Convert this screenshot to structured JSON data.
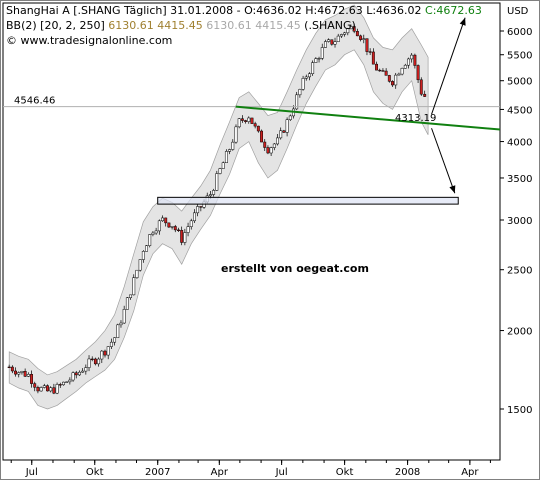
{
  "header": {
    "line1_prefix": "ShangHai A [.SHANG  Täglich] 31.01.2008 - O:4636.02 H:4672.63 L:4636.02 ",
    "line1_close": "C:4672.63",
    "line2_prefix": "BB(2) [20, 2, 250] ",
    "line2_vals_a": "6130.61 4415.45",
    "line2_vals_b": " 6130.61 4415.45",
    "line2_suffix": " (.SHANG)",
    "line3": "www.tradesignalonline.com",
    "copyright_glyph": "©"
  },
  "watermark": "erstellt von oegeat.com",
  "colors": {
    "candle_up": "#ffffff",
    "candle_down": "#cc2020",
    "band_fill": "#e4e4e4",
    "trendline": "#108010",
    "close_text": "#108010",
    "bb_vals": "#a08030",
    "watermark": "#0a1a9a"
  },
  "chart_data": {
    "type": "candlestick",
    "title": "ShangHai A [.SHANG  Täglich]",
    "y_unit": "USD",
    "y_scale": "log",
    "ylim": [
      1150,
      6500
    ],
    "y_ticks": [
      1500,
      2000,
      2500,
      3000,
      3500,
      4000,
      4500,
      5000,
      5500,
      6000
    ],
    "x_ticks": [
      "Jul",
      "Okt",
      "2007",
      "Apr",
      "Jul",
      "Okt",
      "2008",
      "Apr"
    ],
    "x_tick_months": [
      "2006-07",
      "2006-10",
      "2007-01",
      "2007-04",
      "2007-07",
      "2007-10",
      "2008-01",
      "2008-04"
    ],
    "x_range": [
      "2006-05-20",
      "2008-05-15"
    ],
    "series": [
      {
        "name": ".SHANG",
        "x": [
          "2006-05-29",
          "2006-06-12",
          "2006-06-26",
          "2006-07-10",
          "2006-07-24",
          "2006-08-07",
          "2006-08-21",
          "2006-09-04",
          "2006-09-18",
          "2006-10-02",
          "2006-10-16",
          "2006-10-30",
          "2006-11-13",
          "2006-11-27",
          "2006-12-11",
          "2006-12-25",
          "2007-01-08",
          "2007-01-22",
          "2007-02-05",
          "2007-02-19",
          "2007-03-05",
          "2007-03-19",
          "2007-04-02",
          "2007-04-16",
          "2007-04-30",
          "2007-05-14",
          "2007-05-28",
          "2007-06-11",
          "2007-06-25",
          "2007-07-09",
          "2007-07-23",
          "2007-08-06",
          "2007-08-20",
          "2007-09-03",
          "2007-09-17",
          "2007-10-01",
          "2007-10-15",
          "2007-10-29",
          "2007-11-12",
          "2007-11-26",
          "2007-12-10",
          "2007-12-24",
          "2008-01-07",
          "2008-01-21",
          "2008-01-31"
        ],
        "close": [
          1750,
          1720,
          1700,
          1620,
          1600,
          1620,
          1660,
          1700,
          1760,
          1800,
          1860,
          1950,
          2150,
          2400,
          2700,
          2900,
          3000,
          2950,
          2800,
          3000,
          3150,
          3300,
          3600,
          3900,
          4300,
          4400,
          4100,
          3900,
          4000,
          4300,
          4700,
          5100,
          5400,
          5700,
          5800,
          6000,
          6100,
          5800,
          5300,
          5100,
          5000,
          5300,
          5500,
          4800,
          4650
        ],
        "bb_upper": [
          1850,
          1820,
          1800,
          1740,
          1700,
          1720,
          1760,
          1800,
          1860,
          1920,
          2000,
          2120,
          2350,
          2650,
          2980,
          3150,
          3250,
          3200,
          3100,
          3250,
          3400,
          3600,
          3950,
          4300,
          4700,
          4800,
          4600,
          4400,
          4450,
          4800,
          5200,
          5600,
          5950,
          6250,
          6350,
          6500,
          6600,
          6300,
          5850,
          5650,
          5600,
          5850,
          6050,
          5700,
          5450
        ],
        "bb_lower": [
          1650,
          1620,
          1600,
          1520,
          1500,
          1520,
          1560,
          1600,
          1650,
          1690,
          1730,
          1800,
          1950,
          2150,
          2450,
          2650,
          2750,
          2700,
          2550,
          2750,
          2900,
          3050,
          3300,
          3550,
          3900,
          4000,
          3700,
          3500,
          3600,
          3900,
          4250,
          4600,
          4900,
          5200,
          5300,
          5500,
          5600,
          5300,
          4800,
          4600,
          4500,
          4800,
          5000,
          4300,
          4100
        ]
      }
    ],
    "annotations": [
      {
        "type": "level",
        "label": "4546.46",
        "y": 4546.46
      },
      {
        "type": "trendline",
        "label": "4313.19",
        "x": [
          "2007-04-25",
          "2008-05-15"
        ],
        "y": [
          4546,
          4180
        ]
      },
      {
        "type": "support-box",
        "x": [
          "2007-01-01",
          "2008-03-15"
        ],
        "y": [
          3180,
          3260
        ]
      },
      {
        "type": "arrow",
        "x": [
          "2008-02-05",
          "2008-03-25"
        ],
        "y": [
          4420,
          6300
        ]
      },
      {
        "type": "arrow",
        "x": [
          "2008-02-05",
          "2008-03-10"
        ],
        "y": [
          4200,
          3310
        ]
      }
    ]
  }
}
